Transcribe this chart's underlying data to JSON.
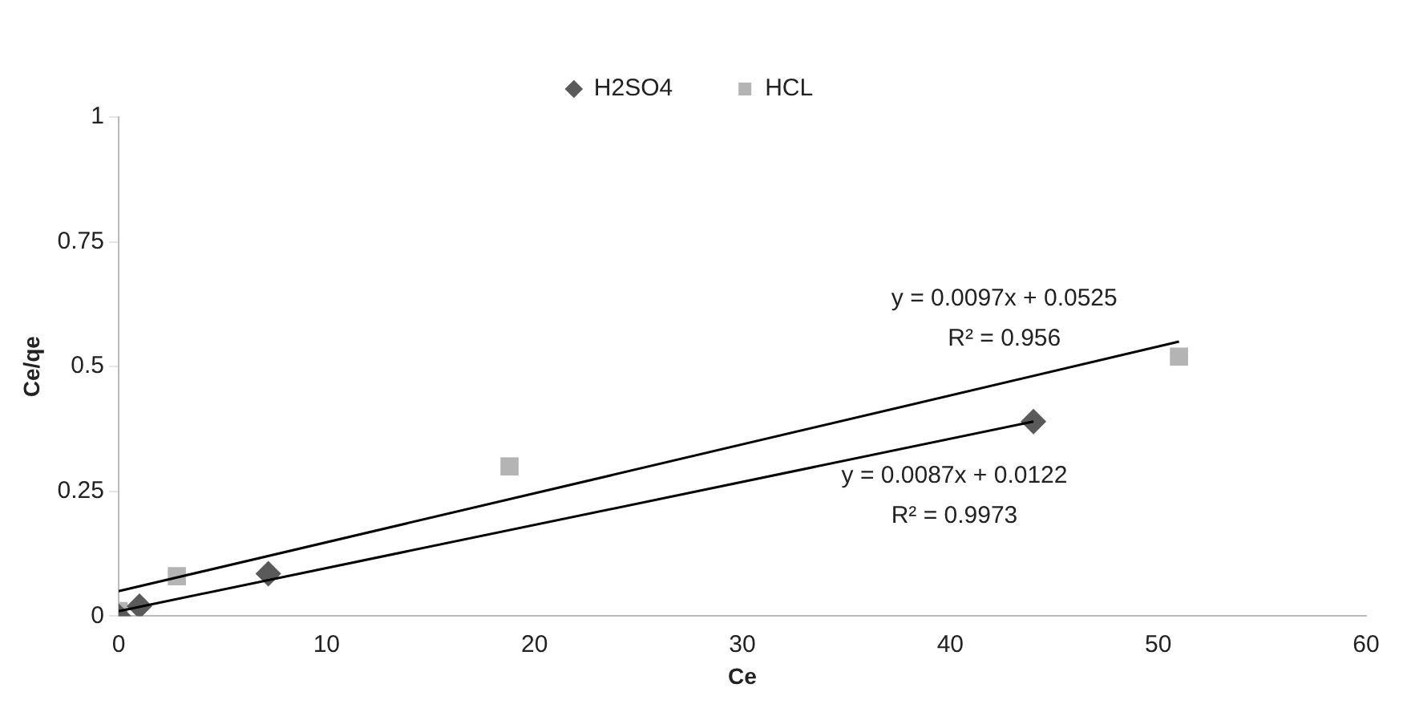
{
  "chart_data": {
    "type": "scatter",
    "xlabel": "Ce",
    "ylabel": "Ce/qe",
    "xlim": [
      0,
      60
    ],
    "xticks": [
      0,
      10,
      20,
      30,
      40,
      50,
      60
    ],
    "ylim": [
      0,
      1
    ],
    "yticks": [
      0,
      0.25,
      0.5,
      0.75,
      1
    ],
    "grid": false,
    "legend": "top",
    "series": [
      {
        "name": "H2SO4",
        "color": "#5a5a5a",
        "marker": "diamond",
        "x": [
          0,
          1,
          7.2,
          44
        ],
        "values": [
          0,
          0.02,
          0.085,
          0.39
        ]
      },
      {
        "name": "HCL",
        "color": "#b4b4b4",
        "marker": "square",
        "x": [
          0,
          2.8,
          18.8,
          51
        ],
        "values": [
          0.01,
          0.08,
          0.3,
          0.52
        ]
      },
      {
        "type": "line",
        "color": "#000000",
        "marker": "none",
        "x": [
          0,
          51
        ],
        "values": [
          0.05,
          0.55
        ]
      },
      {
        "type": "line",
        "color": "#000000",
        "marker": "none",
        "x": [
          0,
          44
        ],
        "values": [
          0.01,
          0.39
        ]
      }
    ],
    "annotations": [
      "y = 0.0097x + 0.0525",
      "R² = 0.956",
      "y = 0.0087x + 0.0122",
      "R² = 0.9973"
    ]
  }
}
